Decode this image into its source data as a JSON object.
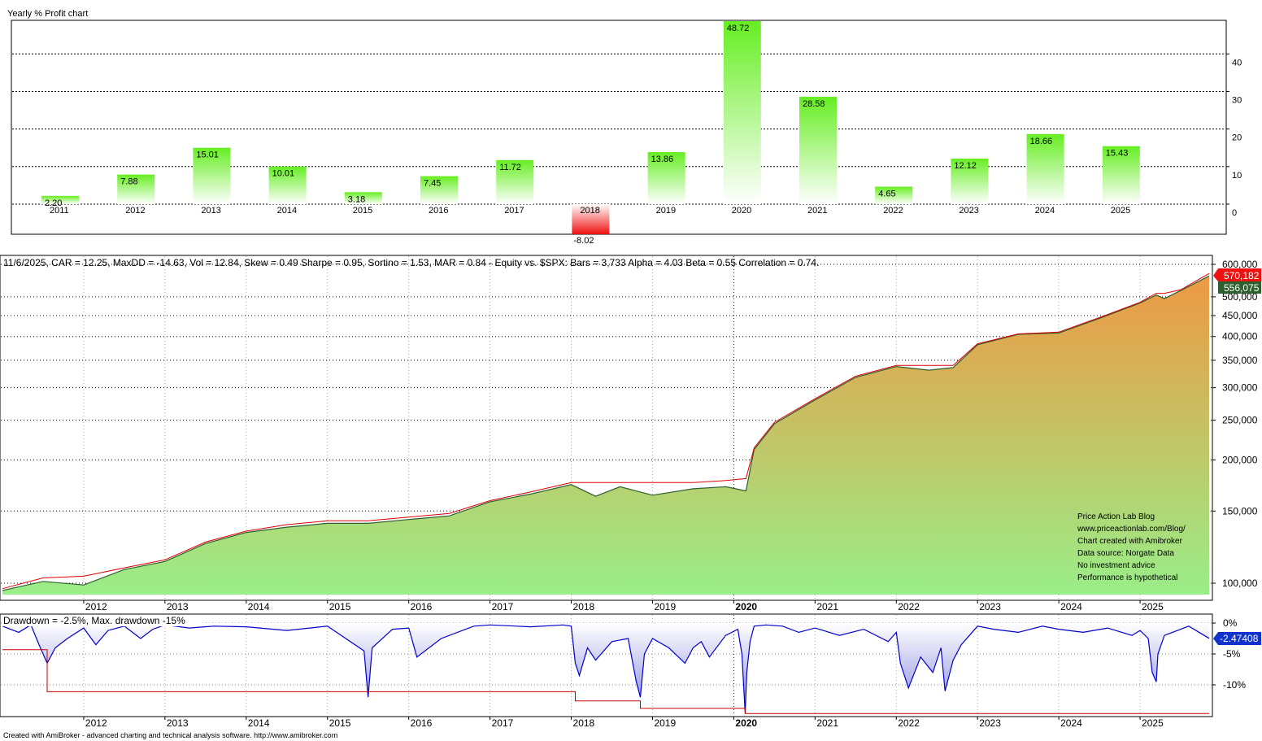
{
  "colors": {
    "bar_positive_top": "#66ee22",
    "bar_positive_bottom": "#ffffff",
    "bar_negative_top": "#ffffff",
    "bar_negative_bottom": "#ee1111",
    "equity_fill_top": "#ee9944",
    "equity_fill_bottom": "#99ee88",
    "equity_line": "#2e5f2e",
    "highwater_line": "#dd0000",
    "drawdown_line": "#0000cc",
    "drawdown_fill": "#8888dd",
    "maxdd_line": "#cc0000",
    "price_tag_red": "#ee1111",
    "price_tag_green": "#2e5f2e",
    "dd_tag_blue": "#1133cc"
  },
  "chart_data": [
    {
      "type": "bar",
      "title": "Yearly % Profit chart",
      "categories": [
        "2011",
        "2012",
        "2013",
        "2014",
        "2015",
        "2016",
        "2017",
        "2018",
        "2019",
        "2020",
        "2021",
        "2022",
        "2023",
        "2024",
        "2025"
      ],
      "values": [
        2.2,
        7.88,
        15.01,
        10.01,
        3.18,
        7.45,
        11.72,
        -8.02,
        13.86,
        48.72,
        28.58,
        4.65,
        12.12,
        18.66,
        15.43
      ],
      "value_labels": [
        "2.20",
        "7.88",
        "15.01",
        "10.01",
        "3.18",
        "7.45",
        "11.72",
        "-8.02",
        "13.86",
        "48.72",
        "28.58",
        "4.65",
        "12.12",
        "18.66",
        "15.43"
      ],
      "y_ticks": [
        40,
        30,
        20,
        10,
        0
      ],
      "y_tick_labels": [
        "40",
        "30",
        "20",
        "10",
        "0"
      ],
      "ylim": [
        -8.02,
        48.72
      ],
      "grid": true
    },
    {
      "type": "area",
      "title": "11/6/2025, CAR = 12.25, MaxDD = -14.63, Vol = 12.84, Skew = 0.49 Sharpe = 0.95, Sortino = 1.53, MAR = 0.84 - Equity vs. $SPX:  Bars = 3,733 Alpha = 4.03 Beta = 0.55 Correlation = 0.74.",
      "y_scale": "log",
      "y_ticks": [
        600000,
        500000,
        450000,
        400000,
        350000,
        300000,
        250000,
        200000,
        150000,
        100000
      ],
      "y_tick_labels": [
        "600,000",
        "500,000",
        "450,000",
        "400,000",
        "350,000",
        "300,000",
        "250,000",
        "200,000",
        "150,000",
        "100,000"
      ],
      "x_ticks": [
        "2012",
        "2013",
        "2014",
        "2015",
        "2016",
        "2017",
        "2018",
        "2019",
        "2020",
        "2021",
        "2022",
        "2023",
        "2024",
        "2025"
      ],
      "last_value_tags": [
        "570,182",
        "556,075"
      ],
      "x": [
        2011.0,
        2011.5,
        2012.0,
        2012.5,
        2013.0,
        2013.5,
        2014.0,
        2014.5,
        2015.0,
        2015.5,
        2016.0,
        2016.5,
        2017.0,
        2017.5,
        2018.0,
        2018.3,
        2018.6,
        2019.0,
        2019.5,
        2019.9,
        2020.15,
        2020.25,
        2020.5,
        2021.0,
        2021.5,
        2022.0,
        2022.4,
        2022.7,
        2023.0,
        2023.5,
        2024.0,
        2024.5,
        2025.0,
        2025.2,
        2025.3,
        2025.5,
        2025.85
      ],
      "y": [
        96000,
        101000,
        99000,
        108000,
        113000,
        125000,
        133000,
        137000,
        140000,
        140000,
        143000,
        146000,
        158000,
        165000,
        174000,
        163000,
        172000,
        164000,
        170000,
        172000,
        168000,
        212000,
        245000,
        280000,
        318000,
        338000,
        331000,
        336000,
        382000,
        405000,
        408000,
        443000,
        483000,
        505000,
        495000,
        518000,
        562000
      ],
      "highwater": [
        97000,
        103000,
        104000,
        109000,
        114000,
        126000,
        134000,
        139000,
        142000,
        142000,
        145000,
        148000,
        159000,
        167000,
        176000,
        176000,
        176000,
        176000,
        176000,
        178000,
        180000,
        214000,
        247000,
        282000,
        320000,
        340000,
        340000,
        340000,
        384000,
        406000,
        410000,
        445000,
        485000,
        510000,
        510000,
        520000,
        570000
      ],
      "grid": true
    },
    {
      "type": "area",
      "title": "Drawdown = -2.5%, Max. drawdown -15%",
      "y_ticks": [
        0,
        -5,
        -10
      ],
      "y_tick_labels": [
        "0%",
        "-5%",
        "-10%"
      ],
      "x_ticks": [
        "2012",
        "2013",
        "2014",
        "2015",
        "2016",
        "2017",
        "2018",
        "2019",
        "2020",
        "2021",
        "2022",
        "2023",
        "2024",
        "2025"
      ],
      "last_value_tag": "-2.47408",
      "x": [
        2011.0,
        2011.2,
        2011.35,
        2011.45,
        2011.55,
        2011.65,
        2011.8,
        2012.0,
        2012.15,
        2012.3,
        2012.5,
        2012.7,
        2012.85,
        2013.0,
        2013.3,
        2013.6,
        2014.0,
        2014.5,
        2015.0,
        2015.45,
        2015.5,
        2015.55,
        2015.8,
        2016.0,
        2016.1,
        2016.4,
        2016.8,
        2017.0,
        2017.5,
        2017.9,
        2018.0,
        2018.05,
        2018.1,
        2018.2,
        2018.3,
        2018.5,
        2018.7,
        2018.8,
        2018.85,
        2018.9,
        2019.0,
        2019.2,
        2019.4,
        2019.5,
        2019.6,
        2019.7,
        2019.9,
        2020.05,
        2020.1,
        2020.14,
        2020.16,
        2020.2,
        2020.25,
        2020.4,
        2020.6,
        2020.8,
        2021.0,
        2021.3,
        2021.6,
        2021.9,
        2022.0,
        2022.05,
        2022.15,
        2022.3,
        2022.45,
        2022.55,
        2022.6,
        2022.7,
        2022.8,
        2022.9,
        2023.0,
        2023.2,
        2023.5,
        2023.8,
        2024.0,
        2024.3,
        2024.6,
        2024.9,
        2025.0,
        2025.1,
        2025.15,
        2025.2,
        2025.22,
        2025.3,
        2025.6,
        2025.85
      ],
      "y": [
        -0.5,
        -1.5,
        -0.3,
        -3.5,
        -6.5,
        -4.0,
        -2.5,
        -0.8,
        -3.5,
        -1.2,
        -0.5,
        -2.5,
        -1.0,
        -0.3,
        -0.8,
        -0.5,
        -0.6,
        -1.2,
        -0.5,
        -4.5,
        -12.0,
        -4.0,
        -1.0,
        -0.8,
        -5.5,
        -2.5,
        -0.5,
        -0.3,
        -0.6,
        -0.3,
        -0.5,
        -6.5,
        -8.5,
        -4.0,
        -6.0,
        -3.0,
        -2.5,
        -9.5,
        -12.0,
        -5.0,
        -2.5,
        -4.0,
        -6.5,
        -4.0,
        -3.0,
        -5.5,
        -2.0,
        -1.0,
        -5.0,
        -14.6,
        -8.0,
        -3.0,
        -0.5,
        -0.3,
        -0.5,
        -1.5,
        -0.8,
        -2.0,
        -1.0,
        -3.0,
        -1.5,
        -6.5,
        -10.5,
        -5.5,
        -8.0,
        -4.0,
        -11.0,
        -6.0,
        -3.5,
        -2.0,
        -0.5,
        -1.0,
        -1.5,
        -0.5,
        -1.0,
        -1.5,
        -0.8,
        -2.0,
        -1.2,
        -2.5,
        -8.0,
        -9.5,
        -5.0,
        -2.0,
        -0.5,
        -2.47
      ],
      "max_drawdown_x": [
        2011.0,
        2011.55,
        2011.55,
        2015.5,
        2015.5,
        2018.05,
        2018.05,
        2018.85,
        2018.85,
        2020.14,
        2020.14,
        2025.85
      ],
      "max_drawdown_y": [
        -4.3,
        -4.3,
        -11.1,
        -11.1,
        -11.1,
        -11.1,
        -12.6,
        -12.6,
        -13.8,
        -13.8,
        -14.63,
        -14.63
      ],
      "grid": true
    }
  ],
  "watermark": {
    "lines": [
      "Price Action Lab Blog",
      "www.priceactionlab.com/Blog/",
      "Chart created with Amibroker",
      "Data source: Norgate Data",
      "No investment advice",
      "Performance is hypothetical"
    ]
  },
  "footer": "Created with AmiBroker - advanced charting and technical analysis software. http://www.amibroker.com"
}
